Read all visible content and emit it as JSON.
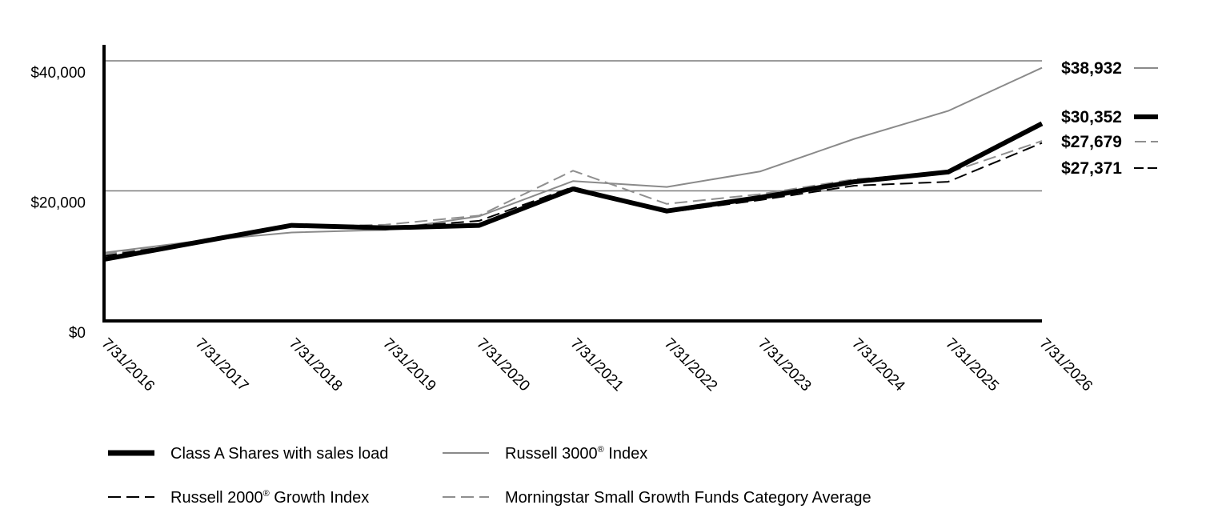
{
  "chart_data": {
    "type": "line",
    "x": [
      "7/31/2016",
      "7/31/2017",
      "7/31/2018",
      "7/31/2019",
      "7/31/2020",
      "7/31/2021",
      "7/31/2022",
      "7/31/2023",
      "7/31/2024",
      "7/31/2025",
      "7/31/2026"
    ],
    "ylim": [
      0,
      42000
    ],
    "yticks": [
      0,
      20000,
      40000
    ],
    "ytick_labels": [
      "$0",
      "$20,000",
      "$40,000"
    ],
    "grid": "horizontal at $20,000 and $40,000",
    "legend_position": "bottom",
    "series": [
      {
        "name": "Russell 3000",
        "name_suffix": "Index",
        "values": [
          10500,
          12300,
          13600,
          14000,
          16100,
          21500,
          20600,
          23000,
          28000,
          32300,
          38932
        ],
        "end_label": "$38,932",
        "color": "#8a8a8a",
        "style": "solid-thin"
      },
      {
        "name": "Class A Shares with sales load",
        "values": [
          9475,
          12100,
          14700,
          14300,
          14700,
          20300,
          16900,
          19000,
          21400,
          22900,
          30352
        ],
        "end_label": "$30,352",
        "color": "#000000",
        "style": "solid-thick"
      },
      {
        "name": "Morningstar Small Growth Funds Category Average",
        "values": [
          10300,
          12000,
          14500,
          14800,
          16200,
          23100,
          18000,
          19500,
          21800,
          22800,
          27679
        ],
        "end_label": "$27,679",
        "color": "#8f8f8f",
        "style": "dashed"
      },
      {
        "name": "Russell 2000",
        "name_suffix": "Growth Index",
        "values": [
          10000,
          12100,
          14600,
          14300,
          15400,
          20600,
          16700,
          18600,
          20800,
          21400,
          27371
        ],
        "end_label": "$27,371",
        "color": "#000000",
        "style": "dashed"
      }
    ]
  },
  "legend": {
    "class_a": "Class A Shares with sales load",
    "r3000": "Russell 3000",
    "r3000_suffix": " Index",
    "r2000": "Russell 2000",
    "r2000_suffix": " Growth Index",
    "morningstar": "Morningstar Small Growth Funds Category Average",
    "registered_mark": "®"
  }
}
